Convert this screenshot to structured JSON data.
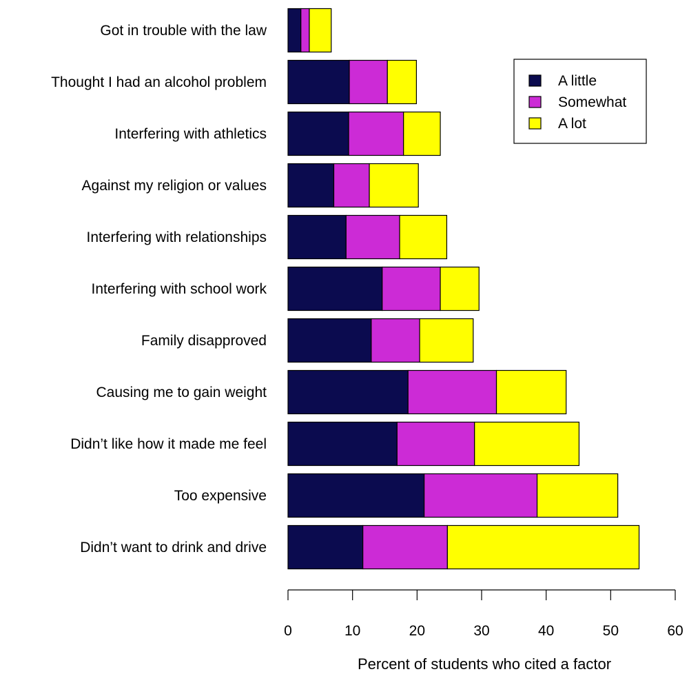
{
  "chart_data": {
    "type": "bar",
    "orientation": "horizontal",
    "stacked": true,
    "title": "",
    "xlabel": "Percent of students who cited a factor",
    "ylabel": "",
    "xlim": [
      0,
      60
    ],
    "xticks": [
      0,
      10,
      20,
      30,
      40,
      50,
      60
    ],
    "grid": false,
    "legend_position": "top-right",
    "categories": [
      "Didn’t want to drink and drive",
      "Too expensive ",
      "Didn’t like how it made me feel",
      "Causing me to gain weight",
      "Family disapproved ",
      "Interfering with school work",
      "Interfering with relationships",
      "Against my religion or values",
      "Interfering with athletics",
      "Thought I had an alcohol problem",
      "Got in trouble with the law"
    ],
    "series": [
      {
        "name": "A little",
        "color": "#0b0b4f",
        "values": [
          11.6,
          21.1,
          16.9,
          18.6,
          12.9,
          14.6,
          9.0,
          7.1,
          9.4,
          9.5,
          2.0
        ]
      },
      {
        "name": "Somewhat",
        "color": "#cc2bd6",
        "values": [
          13.1,
          17.5,
          12.0,
          13.7,
          7.5,
          9.0,
          8.3,
          5.5,
          8.5,
          5.9,
          1.3
        ]
      },
      {
        "name": "A lot",
        "color": "#ffff00",
        "values": [
          29.7,
          12.5,
          16.2,
          10.8,
          8.3,
          6.0,
          7.3,
          7.6,
          5.7,
          4.5,
          3.4
        ]
      }
    ]
  }
}
